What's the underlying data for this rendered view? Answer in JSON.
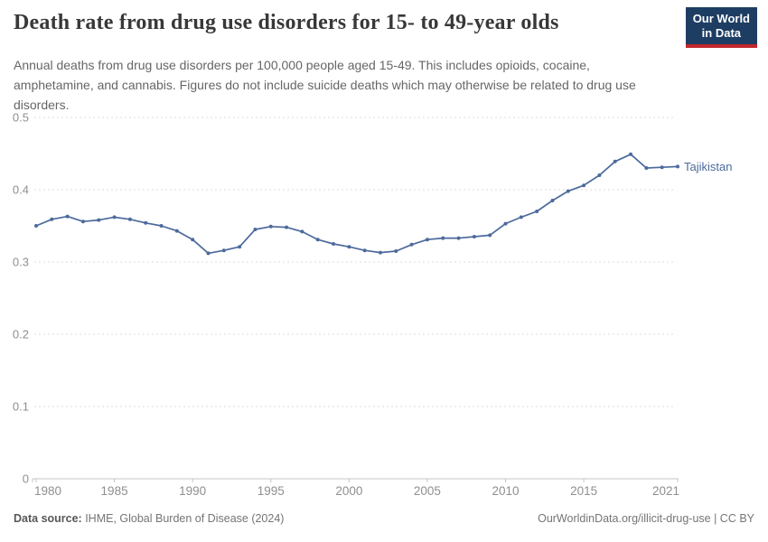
{
  "header": {
    "title": "Death rate from drug use disorders for 15- to 49-year olds",
    "subtitle": "Annual deaths from drug use disorders per 100,000 people aged 15-49. This includes opioids, cocaine, amphetamine, and cannabis. Figures do not include suicide deaths which may otherwise be related to drug use disorders.",
    "logo": {
      "line1": "Our World",
      "line2": "in Data"
    }
  },
  "chart_data": {
    "type": "line",
    "title": "Death rate from drug use disorders for 15- to 49-year olds",
    "xlabel": "",
    "ylabel": "",
    "xlim": [
      1980,
      2021
    ],
    "ylim": [
      0,
      0.5
    ],
    "x_ticks": [
      1980,
      1985,
      1990,
      1995,
      2000,
      2005,
      2010,
      2015,
      2021
    ],
    "y_ticks": [
      0,
      0.1,
      0.2,
      0.3,
      0.4,
      0.5
    ],
    "grid": "dashed-horizontal",
    "legend_position": "end-of-line-label",
    "x": [
      1980,
      1981,
      1982,
      1983,
      1984,
      1985,
      1986,
      1987,
      1988,
      1989,
      1990,
      1991,
      1992,
      1993,
      1994,
      1995,
      1996,
      1997,
      1998,
      1999,
      2000,
      2001,
      2002,
      2003,
      2004,
      2005,
      2006,
      2007,
      2008,
      2009,
      2010,
      2011,
      2012,
      2013,
      2014,
      2015,
      2016,
      2017,
      2018,
      2019,
      2020,
      2021
    ],
    "series": [
      {
        "name": "Tajikistan",
        "color": "#4c6a9c",
        "values": [
          0.35,
          0.359,
          0.363,
          0.356,
          0.358,
          0.362,
          0.359,
          0.354,
          0.35,
          0.343,
          0.331,
          0.312,
          0.316,
          0.321,
          0.345,
          0.349,
          0.348,
          0.342,
          0.331,
          0.325,
          0.321,
          0.316,
          0.313,
          0.315,
          0.324,
          0.331,
          0.333,
          0.333,
          0.335,
          0.337,
          0.353,
          0.362,
          0.37,
          0.385,
          0.398,
          0.406,
          0.42,
          0.439,
          0.449,
          0.43,
          0.431,
          0.432
        ]
      }
    ]
  },
  "footer": {
    "source_label": "Data source:",
    "source_text": " IHME, Global Burden of Disease (2024)",
    "link_text": "OurWorldinData.org/illicit-drug-use | CC BY"
  },
  "colors": {
    "line": "#4c6a9c",
    "grid": "#dedede",
    "axis": "#c4c4c4",
    "tick_label": "#8f8f8f",
    "logo_bg": "#1d3d63",
    "logo_stripe": "#c0272d"
  }
}
